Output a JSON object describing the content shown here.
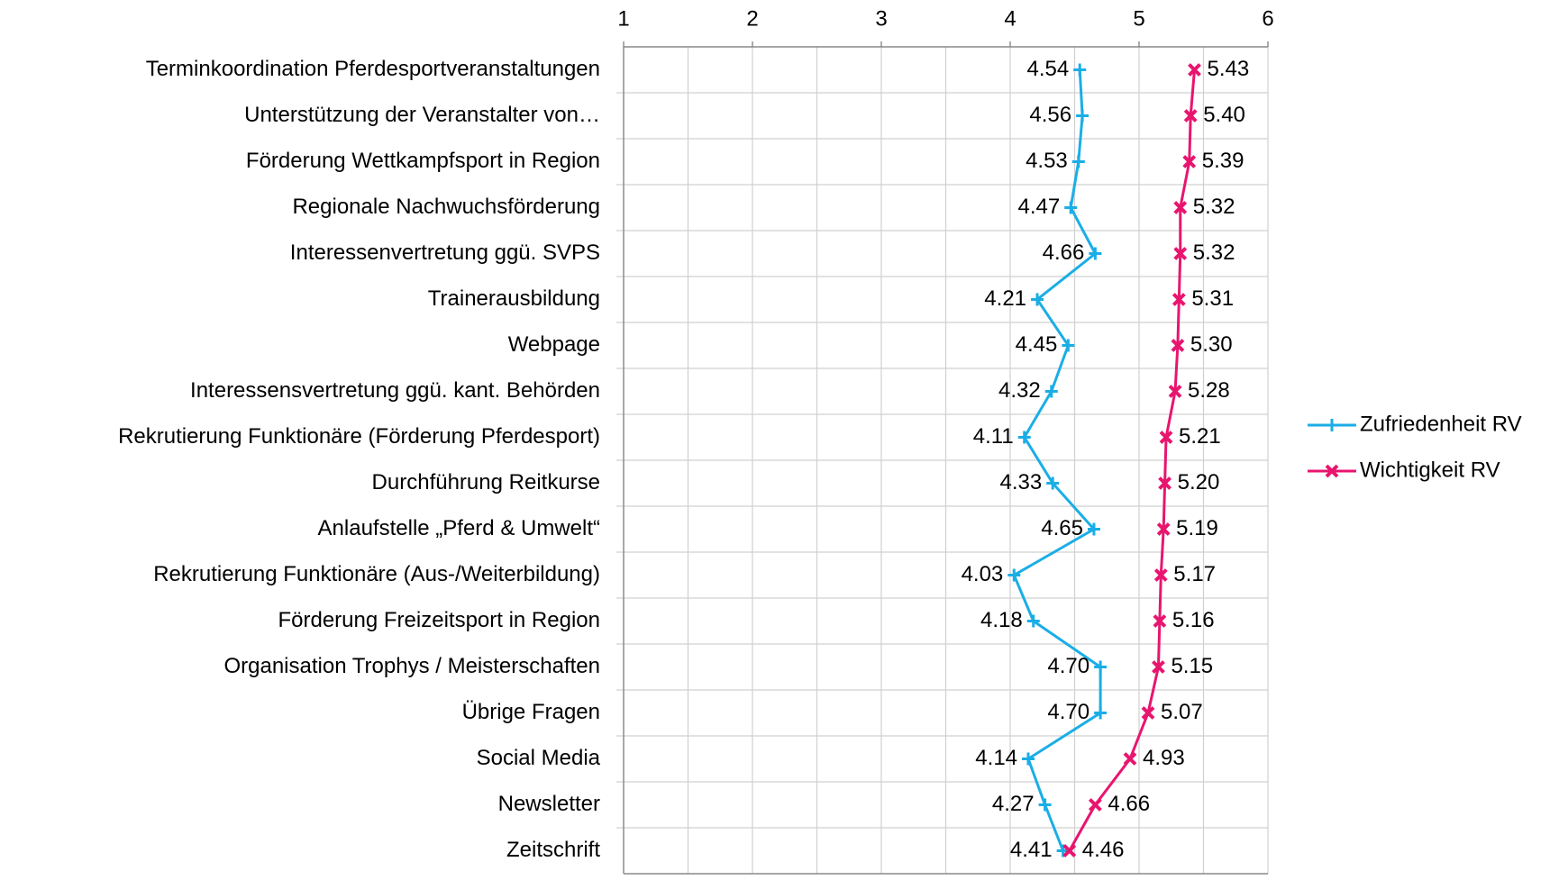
{
  "chart_data": {
    "type": "line",
    "categories": [
      "Terminkoordination Pferdesportveranstaltungen",
      "Unterstützung der Veranstalter von…",
      "Förderung Wettkampfsport in Region",
      "Regionale Nachwuchsförderung",
      "Interessenvertretung ggü. SVPS",
      "Trainerausbildung",
      "Webpage",
      "Interessensvertretung ggü. kant. Behörden",
      "Rekrutierung Funktionäre (Förderung Pferdesport)",
      "Durchführung Reitkurse",
      "Anlaufstelle „Pferd & Umwelt“",
      "Rekrutierung Funktionäre (Aus-/Weiterbildung)",
      "Förderung Freizeitsport in Region",
      "Organisation Trophys / Meisterschaften",
      "Übrige Fragen",
      "Social Media",
      "Newsletter",
      "Zeitschrift"
    ],
    "series": [
      {
        "name": "Zufriedenheit RV",
        "color": "#1aaee6",
        "marker": "plus",
        "values": [
          4.54,
          4.56,
          4.53,
          4.47,
          4.66,
          4.21,
          4.45,
          4.32,
          4.11,
          4.33,
          4.65,
          4.03,
          4.18,
          4.7,
          4.7,
          4.14,
          4.27,
          4.41
        ],
        "value_labels": [
          "4.54",
          "4.56",
          "4.53",
          "4.47",
          "4.66",
          "4.21",
          "4.45",
          "4.32",
          "4.11",
          "4.33",
          "4.65",
          "4.03",
          "4.18",
          "4.70",
          "4.70",
          "4.14",
          "4.27",
          "4.41"
        ]
      },
      {
        "name": "Wichtigkeit RV",
        "color": "#e8156f",
        "marker": "x",
        "values": [
          5.43,
          5.4,
          5.39,
          5.32,
          5.32,
          5.31,
          5.3,
          5.28,
          5.21,
          5.2,
          5.19,
          5.17,
          5.16,
          5.15,
          5.07,
          4.93,
          4.66,
          4.46
        ],
        "value_labels": [
          "5.43",
          "5.40",
          "5.39",
          "5.32",
          "5.32",
          "5.31",
          "5.30",
          "5.28",
          "5.21",
          "5.20",
          "5.19",
          "5.17",
          "5.16",
          "5.15",
          "5.07",
          "4.93",
          "4.66",
          "4.46"
        ]
      }
    ],
    "xlim": [
      1,
      6
    ],
    "xticks": [
      1,
      2,
      3,
      4,
      5,
      6
    ],
    "xminor_ticks": [
      1.5,
      2.5,
      3.5,
      4.5,
      5.5
    ],
    "grid": true,
    "legend": "right"
  }
}
